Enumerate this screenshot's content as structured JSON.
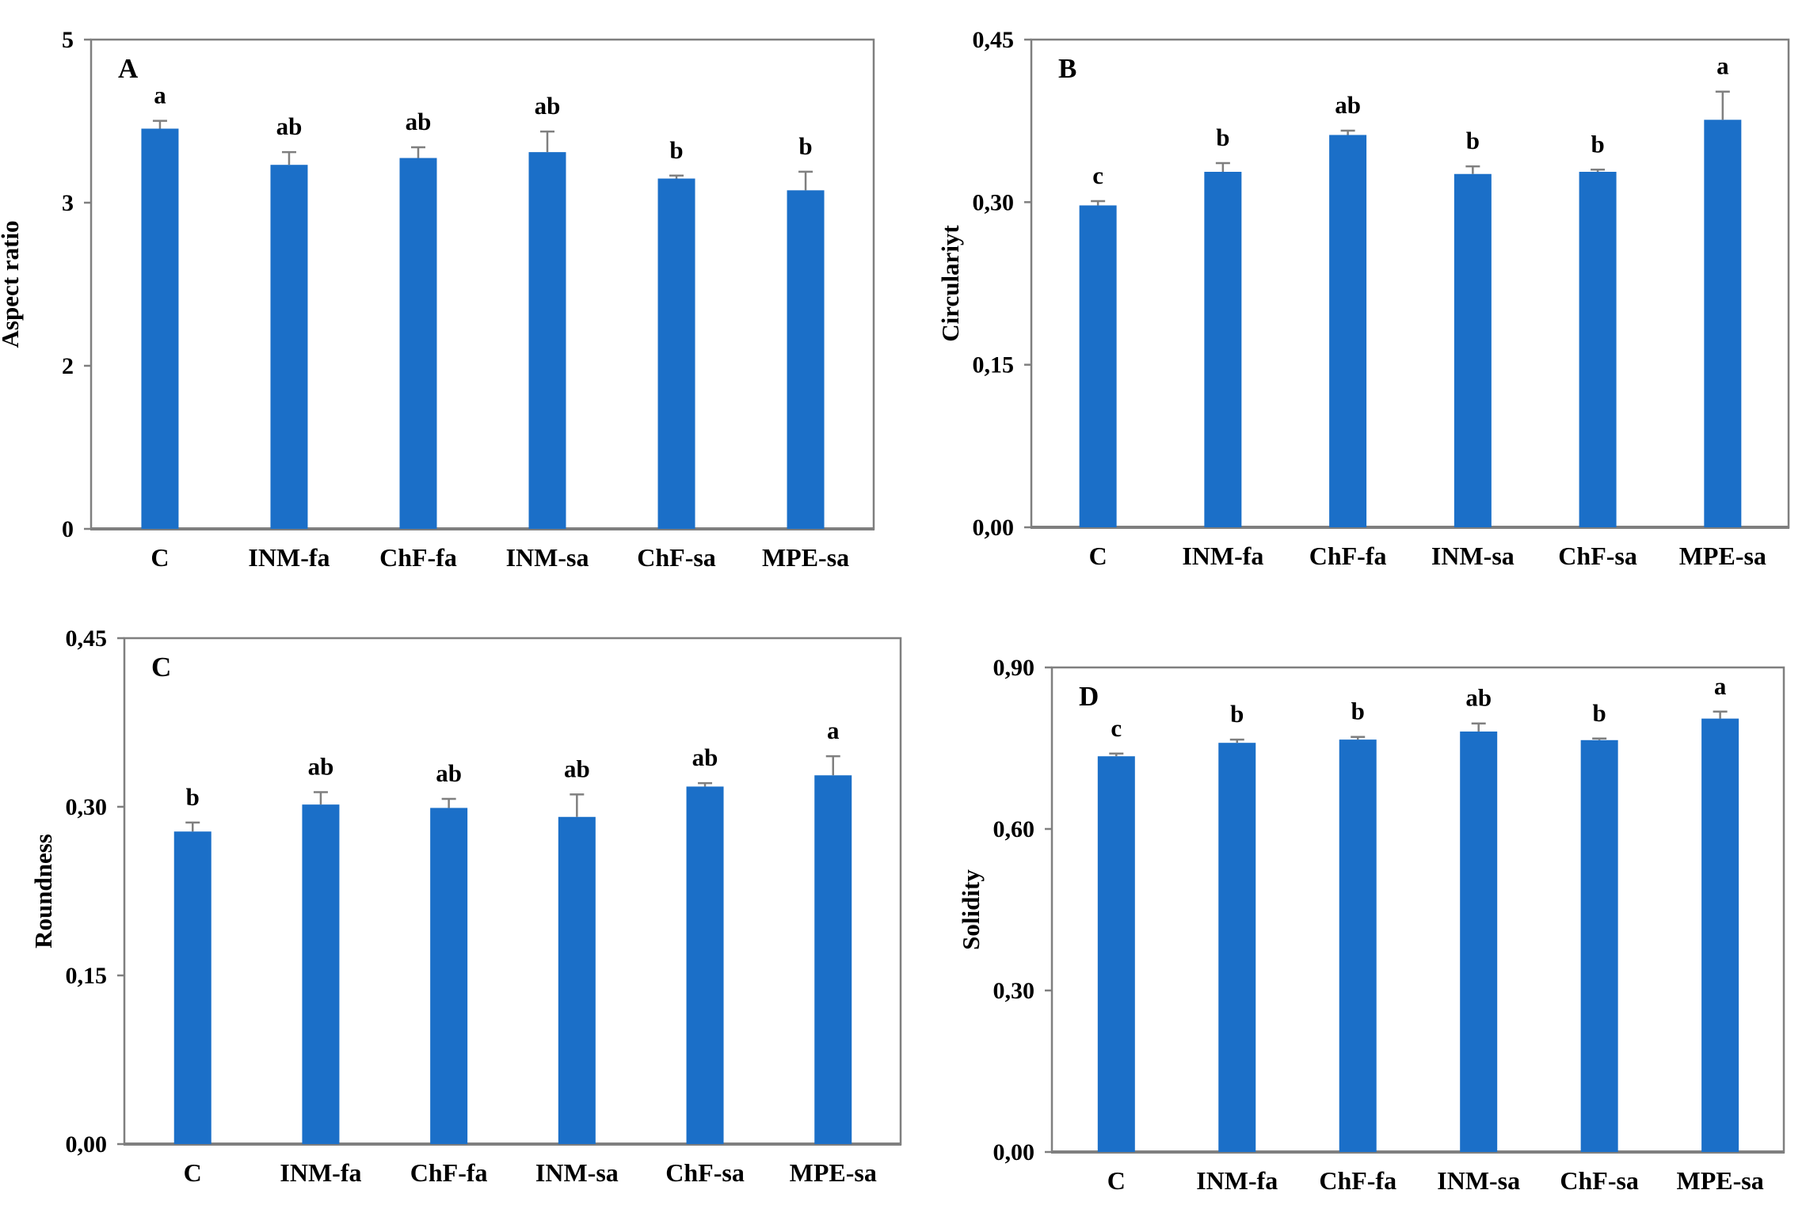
{
  "figure": {
    "background": "#ffffff",
    "bar_color": "#1b6fc8",
    "frame_color": "#7f7f7f",
    "error_bar_color": "#7f7f7f",
    "text_color": "#000000",
    "categories": [
      "C",
      "INM-fa",
      "ChF-fa",
      "INM-sa",
      "ChF-sa",
      "MPE-sa"
    ]
  },
  "chart_data": [
    {
      "type": "bar",
      "panel_label": "A",
      "ylabel": "Aspect ratio",
      "categories": [
        "C",
        "INM-fa",
        "ChF-fa",
        "INM-sa",
        "ChF-sa",
        "MPE-sa"
      ],
      "values": [
        4.09,
        3.72,
        3.79,
        3.85,
        3.58,
        3.46
      ],
      "errors": [
        0.08,
        0.13,
        0.11,
        0.21,
        0.03,
        0.19
      ],
      "letters": [
        "a",
        "ab",
        "ab",
        "ab",
        "b",
        "b"
      ],
      "ylim": [
        0,
        5
      ],
      "yticks": [
        {
          "label": "0",
          "value": 0
        },
        {
          "label": "2",
          "value": 1.6667
        },
        {
          "label": "3",
          "value": 3.3333
        },
        {
          "label": "5",
          "value": 5
        }
      ],
      "grid": false,
      "legend": "none"
    },
    {
      "type": "bar",
      "panel_label": "B",
      "ylabel": "Circulariyt",
      "categories": [
        "C",
        "INM-fa",
        "ChF-fa",
        "INM-sa",
        "ChF-sa",
        "MPE-sa"
      ],
      "values": [
        0.297,
        0.328,
        0.362,
        0.326,
        0.328,
        0.376
      ],
      "errors": [
        0.004,
        0.008,
        0.004,
        0.007,
        0.002,
        0.026
      ],
      "letters": [
        "c",
        "b",
        "ab",
        "b",
        "b",
        "a"
      ],
      "ylim": [
        0,
        0.45
      ],
      "yticks": [
        {
          "label": "0,00",
          "value": 0
        },
        {
          "label": "0,15",
          "value": 0.15
        },
        {
          "label": "0,30",
          "value": 0.3
        },
        {
          "label": "0,45",
          "value": 0.45
        }
      ],
      "grid": false,
      "legend": "none"
    },
    {
      "type": "bar",
      "panel_label": "C",
      "ylabel": "Roundness",
      "categories": [
        "C",
        "INM-fa",
        "ChF-fa",
        "INM-sa",
        "ChF-sa",
        "MPE-sa"
      ],
      "values": [
        0.278,
        0.302,
        0.299,
        0.291,
        0.318,
        0.328
      ],
      "errors": [
        0.008,
        0.011,
        0.008,
        0.02,
        0.003,
        0.017
      ],
      "letters": [
        "b",
        "ab",
        "ab",
        "ab",
        "ab",
        "a"
      ],
      "ylim": [
        0,
        0.45
      ],
      "yticks": [
        {
          "label": "0,00",
          "value": 0
        },
        {
          "label": "0,15",
          "value": 0.15
        },
        {
          "label": "0,30",
          "value": 0.3
        },
        {
          "label": "0,45",
          "value": 0.45
        }
      ],
      "grid": false,
      "legend": "none"
    },
    {
      "type": "bar",
      "panel_label": "D",
      "ylabel": "Solidity",
      "categories": [
        "C",
        "INM-fa",
        "ChF-fa",
        "INM-sa",
        "ChF-sa",
        "MPE-sa"
      ],
      "values": [
        0.735,
        0.76,
        0.766,
        0.781,
        0.765,
        0.805
      ],
      "errors": [
        0.005,
        0.006,
        0.005,
        0.015,
        0.003,
        0.013
      ],
      "letters": [
        "c",
        "b",
        "b",
        "ab",
        "b",
        "a"
      ],
      "ylim": [
        0,
        0.9
      ],
      "yticks": [
        {
          "label": "0,00",
          "value": 0
        },
        {
          "label": "0,30",
          "value": 0.3
        },
        {
          "label": "0,60",
          "value": 0.6
        },
        {
          "label": "0,90",
          "value": 0.9
        }
      ],
      "grid": false,
      "legend": "none"
    }
  ]
}
